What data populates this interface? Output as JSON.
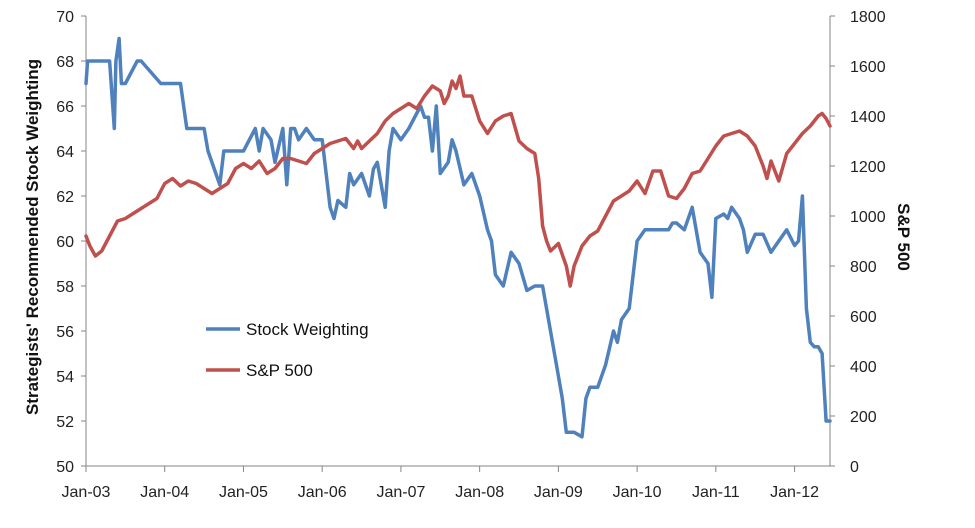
{
  "chart_data": {
    "type": "line",
    "title": "",
    "x_tick_labels": [
      "Jan-03",
      "Jan-04",
      "Jan-05",
      "Jan-06",
      "Jan-07",
      "Jan-08",
      "Jan-09",
      "Jan-10",
      "Jan-11",
      "Jan-12"
    ],
    "x_range": [
      2003.0,
      2012.45
    ],
    "y_left": {
      "label": "Strategists' Recommended Stock Weighting",
      "range": [
        50,
        70
      ],
      "ticks": [
        50,
        52,
        54,
        56,
        58,
        60,
        62,
        64,
        66,
        68,
        70
      ]
    },
    "y_right": {
      "label": "S&P 500",
      "range": [
        0,
        1800
      ],
      "ticks": [
        0,
        200,
        400,
        600,
        800,
        1000,
        1200,
        1400,
        1600,
        1800
      ]
    },
    "legend": {
      "placement": "lower-left (inside)"
    },
    "grid": false,
    "series": [
      {
        "name": "Stock Weighting",
        "axis": "left",
        "color": "#4f81bd",
        "x": [
          2003.0,
          2003.02,
          2003.3,
          2003.36,
          2003.38,
          2003.42,
          2003.45,
          2003.47,
          2003.5,
          2003.65,
          2003.7,
          2003.95,
          2004.0,
          2004.2,
          2004.28,
          2004.5,
          2004.55,
          2004.7,
          2004.75,
          2004.85,
          2005.0,
          2005.15,
          2005.2,
          2005.25,
          2005.35,
          2005.4,
          2005.5,
          2005.55,
          2005.6,
          2005.65,
          2005.7,
          2005.8,
          2005.9,
          2006.0,
          2006.1,
          2006.15,
          2006.2,
          2006.3,
          2006.35,
          2006.4,
          2006.5,
          2006.6,
          2006.65,
          2006.7,
          2006.8,
          2006.85,
          2006.9,
          2007.0,
          2007.1,
          2007.25,
          2007.3,
          2007.35,
          2007.4,
          2007.45,
          2007.5,
          2007.6,
          2007.65,
          2007.7,
          2007.8,
          2007.9,
          2008.0,
          2008.1,
          2008.15,
          2008.2,
          2008.3,
          2008.4,
          2008.5,
          2008.6,
          2008.7,
          2008.8,
          2008.9,
          2009.0,
          2009.05,
          2009.1,
          2009.2,
          2009.3,
          2009.35,
          2009.4,
          2009.5,
          2009.6,
          2009.7,
          2009.75,
          2009.8,
          2009.9,
          2010.0,
          2010.1,
          2010.2,
          2010.25,
          2010.3,
          2010.4,
          2010.45,
          2010.5,
          2010.6,
          2010.7,
          2010.8,
          2010.9,
          2010.95,
          2011.0,
          2011.1,
          2011.15,
          2011.2,
          2011.3,
          2011.35,
          2011.4,
          2011.5,
          2011.6,
          2011.7,
          2011.8,
          2011.9,
          2012.0,
          2012.05,
          2012.1,
          2012.15,
          2012.2,
          2012.25,
          2012.3,
          2012.35,
          2012.4,
          2012.45
        ],
        "values": [
          67,
          68,
          68,
          65,
          68,
          69,
          67,
          67,
          67,
          68,
          68,
          67,
          67,
          67,
          65,
          65,
          64,
          62.5,
          64,
          64,
          64,
          65,
          64,
          65,
          64.5,
          63.5,
          65,
          62.5,
          65,
          65,
          64.5,
          65,
          64.5,
          64.5,
          61.5,
          61,
          61.8,
          61.5,
          63,
          62.5,
          63,
          62,
          63.2,
          63.5,
          61.5,
          64,
          65,
          64.5,
          65,
          66,
          65.5,
          65.5,
          64,
          66,
          63,
          63.5,
          64.5,
          64,
          62.5,
          63,
          62,
          60.5,
          60,
          58.5,
          58,
          59.5,
          59,
          57.8,
          58,
          58,
          56,
          54,
          53,
          51.5,
          51.5,
          51.3,
          53,
          53.5,
          53.5,
          54.5,
          56,
          55.5,
          56.5,
          57,
          60,
          60.5,
          60.5,
          60.5,
          60.5,
          60.5,
          60.8,
          60.8,
          60.5,
          61.5,
          59.5,
          59,
          57.5,
          61,
          61.2,
          61,
          61.5,
          61,
          60.5,
          59.5,
          60.3,
          60.3,
          59.5,
          60,
          60.5,
          59.8,
          60,
          62,
          57,
          55.5,
          55.3,
          55.3,
          55,
          52,
          52
        ]
      },
      {
        "name": "S&P 500",
        "axis": "right",
        "color": "#c0504d",
        "x": [
          2003.0,
          2003.05,
          2003.12,
          2003.2,
          2003.3,
          2003.4,
          2003.5,
          2003.6,
          2003.7,
          2003.8,
          2003.9,
          2004.0,
          2004.1,
          2004.2,
          2004.3,
          2004.4,
          2004.5,
          2004.6,
          2004.7,
          2004.8,
          2004.9,
          2005.0,
          2005.1,
          2005.2,
          2005.3,
          2005.4,
          2005.5,
          2005.6,
          2005.7,
          2005.8,
          2005.9,
          2006.0,
          2006.1,
          2006.2,
          2006.3,
          2006.4,
          2006.45,
          2006.5,
          2006.6,
          2006.7,
          2006.8,
          2006.9,
          2007.0,
          2007.1,
          2007.2,
          2007.3,
          2007.4,
          2007.5,
          2007.55,
          2007.6,
          2007.65,
          2007.7,
          2007.75,
          2007.8,
          2007.9,
          2008.0,
          2008.1,
          2008.2,
          2008.3,
          2008.4,
          2008.5,
          2008.6,
          2008.7,
          2008.75,
          2008.8,
          2008.85,
          2008.9,
          2009.0,
          2009.1,
          2009.15,
          2009.2,
          2009.3,
          2009.4,
          2009.5,
          2009.6,
          2009.7,
          2009.8,
          2009.9,
          2010.0,
          2010.1,
          2010.2,
          2010.3,
          2010.4,
          2010.5,
          2010.6,
          2010.7,
          2010.8,
          2010.9,
          2011.0,
          2011.1,
          2011.2,
          2011.3,
          2011.4,
          2011.5,
          2011.6,
          2011.65,
          2011.7,
          2011.8,
          2011.9,
          2012.0,
          2012.1,
          2012.2,
          2012.3,
          2012.35,
          2012.4,
          2012.45
        ],
        "values": [
          920,
          880,
          840,
          860,
          920,
          980,
          990,
          1010,
          1030,
          1050,
          1070,
          1130,
          1150,
          1120,
          1140,
          1130,
          1110,
          1090,
          1110,
          1130,
          1190,
          1210,
          1190,
          1220,
          1170,
          1190,
          1230,
          1230,
          1220,
          1210,
          1250,
          1270,
          1290,
          1300,
          1310,
          1270,
          1300,
          1270,
          1300,
          1330,
          1380,
          1410,
          1430,
          1450,
          1430,
          1480,
          1520,
          1500,
          1450,
          1480,
          1540,
          1510,
          1560,
          1480,
          1480,
          1380,
          1330,
          1380,
          1400,
          1410,
          1300,
          1270,
          1250,
          1150,
          960,
          900,
          860,
          890,
          800,
          720,
          800,
          880,
          920,
          940,
          1000,
          1060,
          1080,
          1100,
          1140,
          1090,
          1180,
          1180,
          1080,
          1070,
          1110,
          1170,
          1180,
          1230,
          1280,
          1320,
          1330,
          1340,
          1320,
          1280,
          1200,
          1150,
          1220,
          1140,
          1250,
          1290,
          1330,
          1360,
          1400,
          1410,
          1390,
          1360
        ]
      }
    ]
  }
}
